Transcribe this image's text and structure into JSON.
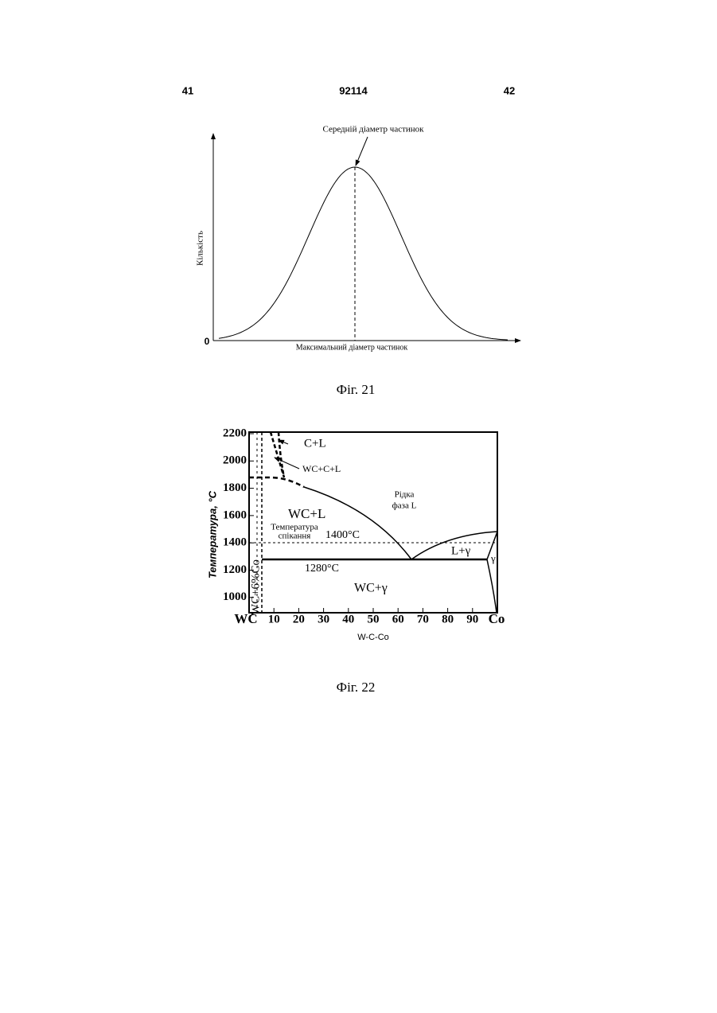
{
  "header": {
    "left": "41",
    "center": "92114",
    "right": "42"
  },
  "figure21": {
    "annotation": "Середній діаметр частинок",
    "y_label": "Кількість",
    "origin": "0",
    "x_label": "Максимальний діаметр частинок",
    "caption": "Фіг. 21"
  },
  "figure22": {
    "y_label": "Температура, °C",
    "x_label": "W-C-Co",
    "yticks": [
      "2200",
      "2000",
      "1800",
      "1600",
      "1400",
      "1200",
      "1000"
    ],
    "xticks": [
      "WC",
      "10",
      "20",
      "30",
      "40",
      "50",
      "60",
      "70",
      "80",
      "90",
      "Co"
    ],
    "regions": {
      "c_l": "C+L",
      "wc_c_l": "WC+C+L",
      "liquid": [
        "Рідка",
        "фаза L"
      ],
      "wc_l": "WC+L",
      "sintering": [
        "Температура",
        "спікання"
      ],
      "t1400": "1400°C",
      "l_gamma": "L+γ",
      "gamma": "γ",
      "t1280": "1280°C",
      "wc_gamma": "WC+γ",
      "composition": "WC+6%Co"
    },
    "caption": "Фіг. 22"
  }
}
